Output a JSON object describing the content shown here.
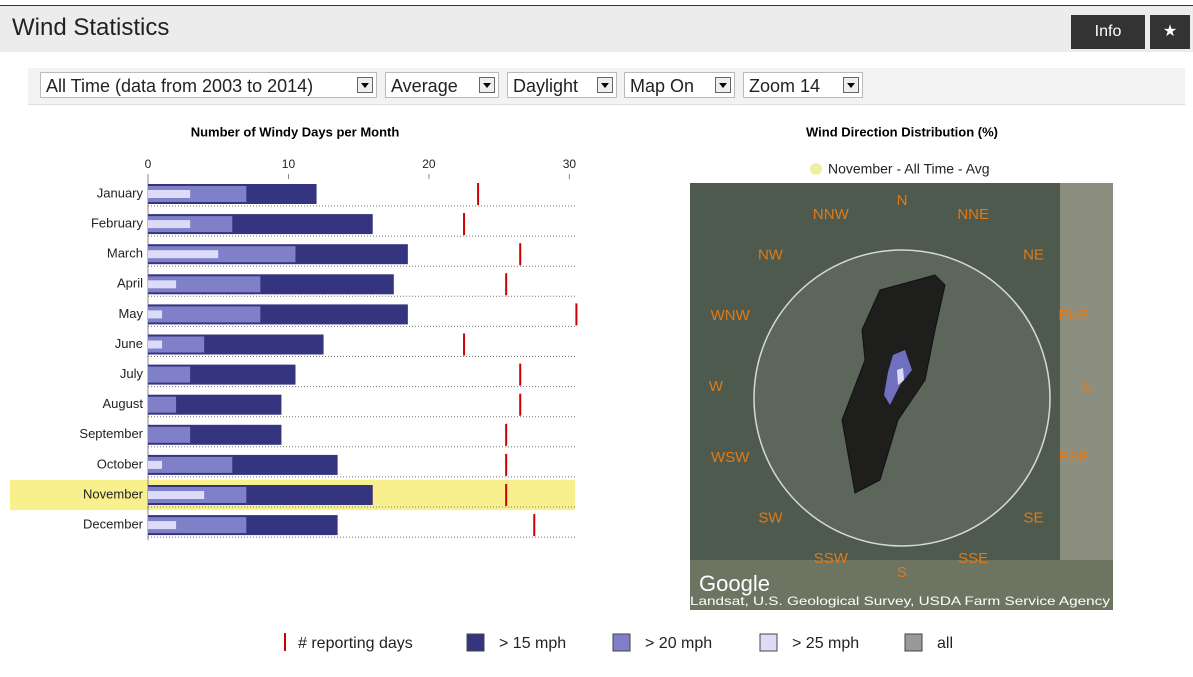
{
  "header": {
    "title": "Wind Statistics",
    "buttons": [
      "Info",
      "★"
    ]
  },
  "toolbar": {
    "selects": [
      "All Time (data from 2003 to 2014)",
      "Average",
      "Daylight",
      "Map On",
      "Zoom 14"
    ]
  },
  "chart_data": [
    {
      "type": "bar",
      "title": "Number of Windy Days per Month",
      "categories": [
        "January",
        "February",
        "March",
        "April",
        "May",
        "June",
        "July",
        "August",
        "September",
        "October",
        "November",
        "December"
      ],
      "highlight": "November",
      "xlim": [
        0,
        30.4
      ],
      "xticks": [
        0,
        10,
        20,
        30
      ],
      "series": [
        {
          "name": "# reporting days",
          "color": "#cc0000",
          "marker": "tick",
          "values": [
            23.5,
            22.5,
            26.5,
            25.5,
            30.5,
            22.5,
            26.5,
            26.5,
            25.5,
            25.5,
            25.5,
            27.5
          ]
        },
        {
          "name": "> 15 mph",
          "color": "#35347f",
          "values": [
            12,
            16,
            18.5,
            17.5,
            18.5,
            12.5,
            10.5,
            9.5,
            9.5,
            13.5,
            16,
            13.5
          ]
        },
        {
          "name": "> 20 mph",
          "color": "#8080c8",
          "values": [
            7,
            6,
            10.5,
            8,
            8,
            4,
            3,
            2,
            3,
            6,
            7,
            7
          ]
        },
        {
          "name": "> 25 mph",
          "color": "#dcdcf8",
          "values": [
            3,
            3,
            5,
            2,
            1,
            1,
            0,
            0,
            0,
            1,
            4,
            2
          ]
        }
      ],
      "extra_legend": [
        {
          "name": "all",
          "color": "#999999"
        }
      ]
    },
    {
      "type": "rose",
      "title": "Wind Direction Distribution (%)",
      "legend": {
        "name": "November - All Time - Avg",
        "color": "#f0eca0"
      },
      "directions": [
        "N",
        "NNE",
        "NE",
        "ENE",
        "E",
        "ESE",
        "SE",
        "SSE",
        "S",
        "SSW",
        "SW",
        "WSW",
        "W",
        "WNW",
        "NW",
        "NNW"
      ],
      "map_labels": [
        "Google",
        "Landsat, U.S. Geological Survey, USDA Farm Service Agency"
      ]
    }
  ]
}
